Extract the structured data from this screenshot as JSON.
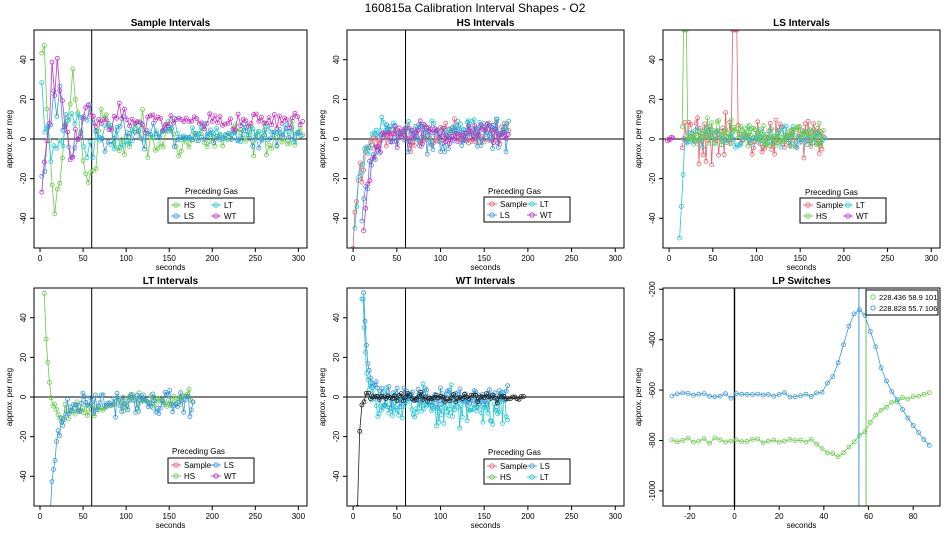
{
  "figure": {
    "title": "160815a   Calibration Interval Shapes - O2",
    "legend_title": "Preceding Gas"
  },
  "colors": {
    "Sample": "#e8636f",
    "HS": "#6cc94e",
    "LS": "#3b98d8",
    "LT": "#27c6d2",
    "WT": "#c234c2",
    "dark": "#222222",
    "axis": "#000000"
  },
  "chart_data": [
    {
      "id": "p1",
      "type": "scatter",
      "title": "Sample Intervals",
      "xlabel": "seconds",
      "ylabel": "approx. per meg",
      "xlim": [
        -7,
        310
      ],
      "ylim": [
        -55,
        55
      ],
      "xticks": [
        0,
        50,
        100,
        150,
        200,
        250,
        300
      ],
      "yticks": [
        -40,
        -20,
        0,
        20,
        40
      ],
      "vline": 60,
      "hline": 0,
      "legend": [
        "HS",
        "LT",
        "LS",
        "WT"
      ],
      "series": [
        {
          "name": "HS",
          "model": "osc",
          "offset": 0,
          "amp": 2,
          "noise": 14,
          "x0": 2,
          "x1": 305,
          "step": 3,
          "decay": 60,
          "init": 45
        },
        {
          "name": "LT",
          "model": "osc",
          "offset": 3,
          "amp": 2,
          "noise": 8,
          "x0": 2,
          "x1": 305,
          "step": 3.5,
          "decay": 50,
          "init": 25
        },
        {
          "name": "LS",
          "model": "osc",
          "offset": 2,
          "amp": 2,
          "noise": 8,
          "x0": 2,
          "x1": 305,
          "step": 3.5,
          "decay": 50,
          "init": -25
        },
        {
          "name": "WT",
          "model": "osc",
          "offset": 9,
          "amp": 3,
          "noise": 8,
          "x0": 2,
          "x1": 305,
          "step": 3,
          "decay": 40,
          "init": -35
        }
      ]
    },
    {
      "id": "p2",
      "type": "scatter",
      "title": "HS Intervals",
      "xlabel": "seconds",
      "ylabel": "approx. per meg",
      "xlim": [
        -7,
        310
      ],
      "ylim": [
        -55,
        55
      ],
      "xticks": [
        0,
        50,
        100,
        150,
        200,
        250,
        300
      ],
      "yticks": [
        -40,
        -20,
        0,
        20,
        40
      ],
      "vline": 60,
      "hline": 0,
      "legend": [
        "Sample",
        "LT",
        "LS",
        "WT"
      ],
      "series": [
        {
          "name": "Sample",
          "model": "rise",
          "start": -50,
          "tau": 8,
          "offset": 2,
          "noise": 6,
          "x0": 0,
          "x1": 178,
          "step": 2
        },
        {
          "name": "LT",
          "model": "rise",
          "start": -45,
          "tau": 8,
          "offset": 5,
          "noise": 5,
          "x0": 2,
          "x1": 178,
          "step": 2.2
        },
        {
          "name": "LS",
          "model": "rise",
          "start": -40,
          "tau": 8,
          "offset": 1,
          "noise": 7,
          "x0": 10,
          "x1": 178,
          "step": 2.2
        },
        {
          "name": "WT",
          "model": "rise",
          "start": -45,
          "tau": 8,
          "offset": 3,
          "noise": 5,
          "x0": 12,
          "x1": 178,
          "step": 2.4
        }
      ]
    },
    {
      "id": "p3",
      "type": "scatter",
      "title": "LS Intervals",
      "xlabel": "seconds",
      "ylabel": "approx. per meg",
      "xlim": [
        -7,
        310
      ],
      "ylim": [
        -55,
        55
      ],
      "xticks": [
        0,
        50,
        100,
        150,
        200,
        250,
        300
      ],
      "yticks": [
        -40,
        -20,
        0,
        20,
        40
      ],
      "vline": null,
      "hline": 0,
      "legend": [
        "Sample",
        "LT",
        "HS",
        "WT"
      ],
      "series": [
        {
          "name": "Sample",
          "model": "flat",
          "offset": 0,
          "noise": 9,
          "x0": 15,
          "x1": 178,
          "step": 1.6,
          "spike": [
            75,
            55
          ]
        },
        {
          "name": "LT",
          "model": "flat",
          "offset": 0,
          "noise": 5,
          "x0": 12,
          "x1": 178,
          "step": 2,
          "drop": [
            0,
            -50
          ]
        },
        {
          "name": "HS",
          "model": "flat",
          "offset": 2,
          "noise": 6,
          "x0": 15,
          "x1": 178,
          "step": 1.6,
          "spike": [
            18,
            55
          ]
        },
        {
          "name": "WT",
          "model": "flat",
          "offset": 0,
          "noise": 1,
          "x0": -2,
          "x1": 4,
          "step": 1.5
        }
      ]
    },
    {
      "id": "p4",
      "type": "scatter",
      "title": "LT Intervals",
      "xlabel": "seconds",
      "ylabel": "approx. per meg",
      "xlim": [
        -7,
        310
      ],
      "ylim": [
        -55,
        55
      ],
      "xticks": [
        0,
        50,
        100,
        150,
        200,
        250,
        300
      ],
      "yticks": [
        -40,
        -20,
        0,
        20,
        40
      ],
      "vline": 60,
      "hline": 0,
      "legend": [
        "Sample",
        "LS",
        "HS",
        "WT"
      ],
      "series": [
        {
          "name": "HS",
          "model": "fall",
          "start": 55,
          "tau": 4,
          "offset": -10,
          "noise": 4,
          "x0": 5,
          "x1": 178,
          "step": 2,
          "recover": 10
        },
        {
          "name": "LS",
          "model": "rise",
          "start": -55,
          "tau": 8,
          "offset": -3,
          "noise": 5,
          "x0": 12,
          "x1": 178,
          "step": 1.8
        }
      ]
    },
    {
      "id": "p5",
      "type": "scatter",
      "title": "WT Intervals",
      "xlabel": "seconds",
      "ylabel": "approx. per meg",
      "xlim": [
        -7,
        310
      ],
      "ylim": [
        -55,
        55
      ],
      "xticks": [
        0,
        50,
        100,
        150,
        200,
        250,
        300
      ],
      "yticks": [
        -40,
        -20,
        0,
        20,
        40
      ],
      "vline": 60,
      "hline": 0,
      "legend": [
        "Sample",
        "LS",
        "HS",
        "LT"
      ],
      "series": [
        {
          "name": "LT",
          "model": "fall",
          "start": 55,
          "tau": 5,
          "offset": -5,
          "noise": 8,
          "x0": 10,
          "x1": 178,
          "step": 1.4,
          "recover": 0
        },
        {
          "name": "LS",
          "model": "fall",
          "start": 55,
          "tau": 5,
          "offset": 0,
          "noise": 4,
          "x0": 12,
          "x1": 178,
          "step": 1.6,
          "recover": 0
        },
        {
          "name": "dark",
          "model": "rise",
          "start": -55,
          "tau": 2,
          "offset": 0,
          "noise": 2,
          "x0": 5,
          "x1": 195,
          "step": 2.5
        }
      ]
    },
    {
      "id": "p6",
      "type": "scatter",
      "title": "LP Switches",
      "xlabel": "seconds",
      "ylabel": "approx. per meg",
      "xlim": [
        -32,
        92
      ],
      "ylim": [
        -1060,
        -195
      ],
      "xticks": [
        -20,
        0,
        20,
        40,
        60,
        80
      ],
      "yticks": [
        -1000,
        -800,
        -600,
        -400,
        -200
      ],
      "vline": 0,
      "hline": null,
      "legend_entries": [
        "228.436 58.9 101",
        "228.828 55.7 106"
      ],
      "series": [
        {
          "name": "HS",
          "model": "lp",
          "base": -800,
          "x0": -28,
          "x1": 88,
          "step": 2.4,
          "vline": 58.9
        },
        {
          "name": "LS",
          "model": "lp",
          "base": -620,
          "x0": -28,
          "x1": 88,
          "step": 2.4,
          "vline": 55.7
        }
      ]
    }
  ]
}
